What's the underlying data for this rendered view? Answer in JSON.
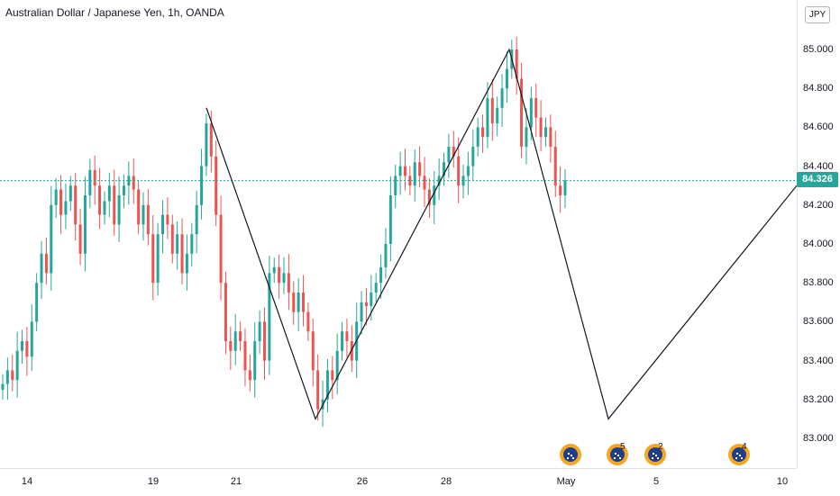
{
  "header": {
    "title": "Australian Dollar / Japanese Yen, 1h, OANDA",
    "currency_button": "JPY"
  },
  "price_axis": {
    "ticks": [
      "85.000",
      "84.800",
      "84.600",
      "84.400",
      "84.200",
      "84.000",
      "83.800",
      "83.600",
      "83.400",
      "83.200",
      "83.000"
    ],
    "last_price": "84.326"
  },
  "time_axis": {
    "ticks": [
      "14",
      "19",
      "21",
      "26",
      "28",
      "May",
      "5",
      "10"
    ]
  },
  "events": [
    {
      "icon": "aud-flag-icon",
      "count": ""
    },
    {
      "icon": "aud-flag-icon",
      "count": "5"
    },
    {
      "icon": "aud-flag-icon",
      "count": "2"
    },
    {
      "icon": "aud-flag-icon",
      "count": "4"
    }
  ],
  "colors": {
    "up": "#26a69a",
    "down": "#ef5350",
    "pattern_line": "#131722",
    "last_price": "#26a69a",
    "event_badge": "#f5a623"
  },
  "chart_data": {
    "type": "candlestick",
    "title": "Australian Dollar / Japanese Yen, 1h, OANDA",
    "ylim": [
      82.9,
      85.2
    ],
    "last_price": 84.326,
    "grid": false,
    "price_series_closes": [
      83.28,
      83.35,
      83.3,
      83.45,
      83.5,
      83.42,
      83.6,
      83.8,
      83.95,
      83.85,
      84.2,
      84.28,
      84.15,
      84.22,
      84.3,
      84.1,
      83.95,
      84.25,
      84.38,
      84.3,
      84.15,
      84.22,
      84.3,
      84.1,
      84.25,
      84.3,
      84.35,
      84.28,
      84.1,
      84.2,
      84.05,
      83.8,
      84.05,
      84.15,
      84.1,
      83.95,
      84.05,
      83.85,
      83.95,
      84.05,
      84.2,
      84.4,
      84.62,
      84.45,
      84.15,
      83.8,
      83.5,
      83.45,
      83.55,
      83.5,
      83.35,
      83.3,
      83.5,
      83.6,
      83.4,
      83.85,
      83.88,
      83.8,
      83.85,
      83.75,
      83.65,
      83.75,
      83.65,
      83.55,
      83.35,
      83.15,
      83.2,
      83.35,
      83.3,
      83.45,
      83.55,
      83.5,
      83.4,
      83.6,
      83.7,
      83.68,
      83.75,
      83.8,
      83.88,
      84.0,
      84.25,
      84.35,
      84.4,
      84.35,
      84.3,
      84.42,
      84.35,
      84.28,
      84.2,
      84.3,
      84.35,
      84.42,
      84.5,
      84.45,
      84.3,
      84.35,
      84.4,
      84.5,
      84.6,
      84.55,
      84.75,
      84.62,
      84.7,
      84.8,
      84.9,
      85.0,
      84.85,
      84.5,
      84.6,
      84.75,
      84.65,
      84.55,
      84.6,
      84.5,
      84.3,
      84.25,
      84.326
    ],
    "zigzag_pattern": {
      "type": "XABCD-style zigzag (drawn)",
      "points": [
        {
          "label": "Apr 20",
          "price": 84.7
        },
        {
          "label": "Apr 24",
          "price": 83.1
        },
        {
          "label": "Apr 29",
          "price": 85.0
        },
        {
          "label": "May 3 (projected)",
          "price": 83.1
        },
        {
          "label": "May 10 (projected)",
          "price": 84.3
        }
      ]
    }
  }
}
